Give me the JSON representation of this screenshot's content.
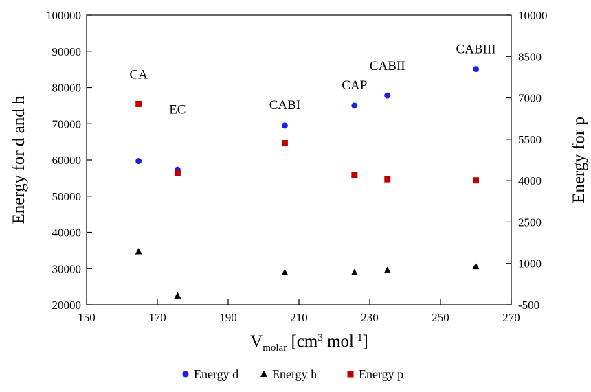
{
  "chart_data": {
    "type": "scatter",
    "xlabel": {
      "main": "V",
      "sub": "molar",
      "unit_open": " [cm",
      "sup1": "3",
      "unit_mid": " mol",
      "sup2": "-1",
      "unit_close": "]"
    },
    "ylabel_left": "Energy for d and h",
    "ylabel_right": "Energy for p",
    "xlim": [
      150,
      270
    ],
    "x_ticks": [
      150,
      170,
      190,
      210,
      230,
      250,
      270
    ],
    "ylim_left": [
      20000,
      100000
    ],
    "y_ticks_left": [
      20000,
      30000,
      40000,
      50000,
      60000,
      70000,
      80000,
      90000,
      100000
    ],
    "ylim_right": [
      -500,
      10000
    ],
    "y_ticks_right": [
      -500,
      1000,
      2500,
      4000,
      5500,
      7000,
      8500,
      10000
    ],
    "grid": false,
    "legend_position": "bottom",
    "series": [
      {
        "name": "Energy d",
        "axis": "left",
        "marker": "circle",
        "color": "#1f1fe6",
        "x": [
          164.7,
          175.7,
          206.0,
          225.7,
          235.0,
          260.0
        ],
        "y": [
          59700,
          57300,
          69500,
          75000,
          77800,
          85100
        ]
      },
      {
        "name": "Energy h",
        "axis": "left",
        "marker": "triangle",
        "color": "#000000",
        "x": [
          164.7,
          175.7,
          206.0,
          225.7,
          235.0,
          260.0
        ],
        "y": [
          34700,
          22500,
          28900,
          28900,
          29500,
          30600
        ]
      },
      {
        "name": "Energy p",
        "axis": "right",
        "marker": "square",
        "color": "#c00000",
        "x": [
          164.7,
          175.7,
          206.0,
          225.7,
          235.0,
          260.0
        ],
        "y": [
          6780,
          4270,
          5360,
          4210,
          4050,
          4010
        ]
      }
    ],
    "annotations": [
      {
        "text": "CA",
        "x": 164.7,
        "y": 82500
      },
      {
        "text": "EC",
        "x": 175.7,
        "y": 72800
      },
      {
        "text": "CABI",
        "x": 206.0,
        "y": 74000
      },
      {
        "text": "CAP",
        "x": 225.7,
        "y": 79500
      },
      {
        "text": "CABII",
        "x": 235.0,
        "y": 84800
      },
      {
        "text": "CABIII",
        "x": 260.0,
        "y": 89500
      }
    ]
  }
}
